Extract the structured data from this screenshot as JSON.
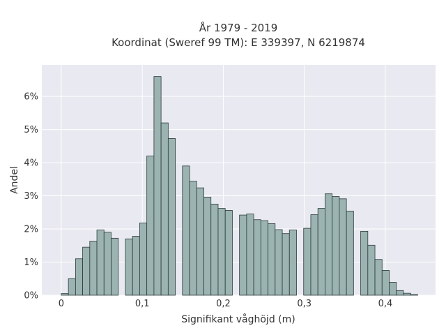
{
  "chart_data": {
    "type": "bar",
    "title_lines": [
      "År 1979 - 2019",
      "Koordinat (Sweref 99 TM): E 339397, N 6219874"
    ],
    "xlabel": "Signifikant våghöjd (m)",
    "ylabel": "Andel",
    "xlim": [
      -0.024,
      0.462
    ],
    "ylim": [
      0,
      6.95
    ],
    "x_ticks": [
      0,
      0.1,
      0.2,
      0.3,
      0.4
    ],
    "x_tick_labels": [
      "0",
      "0,1",
      "0,2",
      "0,3",
      "0,4"
    ],
    "y_ticks": [
      0,
      1,
      2,
      3,
      4,
      5,
      6
    ],
    "y_tick_labels": [
      "0%",
      "1%",
      "2%",
      "3%",
      "4%",
      "5%",
      "6%"
    ],
    "bin_width": 0.0088,
    "x": [
      0.0044,
      0.0132,
      0.022,
      0.0308,
      0.0396,
      0.0484,
      0.0572,
      0.066,
      0.0748,
      0.0836,
      0.0924,
      0.1012,
      0.11,
      0.1188,
      0.1276,
      0.1364,
      0.1452,
      0.154,
      0.1628,
      0.1716,
      0.1804,
      0.1892,
      0.198,
      0.2068,
      0.2156,
      0.2244,
      0.2332,
      0.242,
      0.2508,
      0.2596,
      0.2684,
      0.2772,
      0.286,
      0.2948,
      0.3036,
      0.3124,
      0.3212,
      0.33,
      0.3388,
      0.3476,
      0.3564,
      0.3652,
      0.374,
      0.3828,
      0.3916,
      0.4004,
      0.4092,
      0.418,
      0.4268,
      0.4356
    ],
    "values": [
      0.05,
      0.5,
      1.1,
      1.45,
      1.63,
      1.97,
      1.9,
      1.72,
      0,
      1.7,
      1.78,
      2.18,
      4.2,
      6.6,
      5.2,
      4.73,
      0,
      3.9,
      3.44,
      3.24,
      2.96,
      2.75,
      2.62,
      2.56,
      0,
      2.42,
      2.45,
      2.28,
      2.25,
      2.16,
      1.98,
      1.86,
      1.97,
      0,
      2.02,
      2.43,
      2.62,
      3.06,
      2.98,
      2.91,
      2.54,
      0,
      1.93,
      1.51,
      1.08,
      0.75,
      0.39,
      0.14,
      0.06,
      0.02
    ],
    "grid": true,
    "colors": {
      "background": "#e9e9f1",
      "grid": "#ffffff",
      "bar_fill": "#9bb3b1",
      "bar_edge": "#2b3a3a"
    }
  }
}
